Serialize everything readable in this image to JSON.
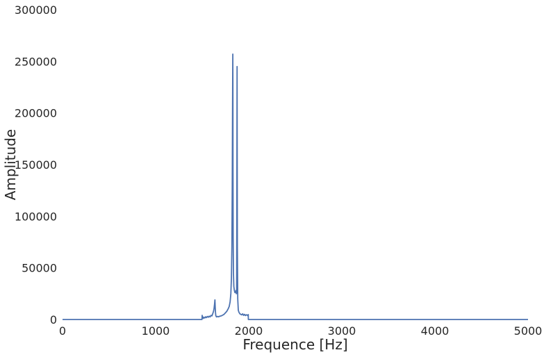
{
  "chart_data": {
    "type": "line",
    "title": "",
    "xlabel": "Frequence [Hz]",
    "ylabel": "Amplitude",
    "xlim": [
      0,
      5000
    ],
    "ylim": [
      0,
      300000
    ],
    "xticks": [
      0,
      1000,
      2000,
      3000,
      4000,
      5000
    ],
    "yticks": [
      0,
      50000,
      100000,
      150000,
      200000,
      250000,
      300000
    ],
    "xtick_labels": [
      "0",
      "1000",
      "2000",
      "3000",
      "4000",
      "5000"
    ],
    "ytick_labels": [
      "0",
      "50000",
      "100000",
      "150000",
      "200000",
      "250000",
      "300000"
    ],
    "grid": false,
    "colors": {
      "line": "#4c72b0",
      "text": "#262626",
      "background": "#ffffff"
    },
    "series": [
      {
        "x": [
          0,
          1498,
          1500,
          1502,
          1508,
          1512,
          1520,
          1528,
          1535,
          1545,
          1555,
          1565,
          1575,
          1585,
          1595,
          1605,
          1615,
          1622,
          1628,
          1633,
          1637,
          1640,
          1643,
          1646,
          1650,
          1656,
          1665,
          1675,
          1690,
          1705,
          1720,
          1735,
          1750,
          1765,
          1780,
          1790,
          1800,
          1808,
          1814,
          1819,
          1823,
          1826,
          1828,
          1829,
          1830,
          1831,
          1833,
          1836,
          1840,
          1846,
          1852,
          1858,
          1863,
          1867,
          1870,
          1872,
          1874,
          1875,
          1876,
          1878,
          1882,
          1888,
          1895,
          1905,
          1915,
          1925,
          1935,
          1945,
          1955,
          1965,
          1975,
          1985,
          1992,
          1995,
          1996,
          5000
        ],
        "y": [
          0,
          0,
          4000,
          1500,
          2500,
          1000,
          2000,
          1500,
          2600,
          1800,
          3000,
          2200,
          3200,
          2500,
          4000,
          3500,
          6000,
          8000,
          11000,
          15000,
          19000,
          12000,
          7000,
          4000,
          3000,
          2500,
          3000,
          2600,
          3200,
          3500,
          4200,
          5000,
          6500,
          8000,
          10500,
          12500,
          17000,
          25000,
          40000,
          70000,
          130000,
          200000,
          240000,
          257000,
          230000,
          150000,
          80000,
          45000,
          32000,
          28000,
          26000,
          27000,
          28000,
          25000,
          26000,
          100000,
          200000,
          245000,
          180000,
          70000,
          20000,
          9000,
          7000,
          5500,
          5000,
          4500,
          5500,
          4000,
          5000,
          3800,
          4600,
          4200,
          3500,
          4800,
          0,
          0
        ]
      }
    ]
  }
}
